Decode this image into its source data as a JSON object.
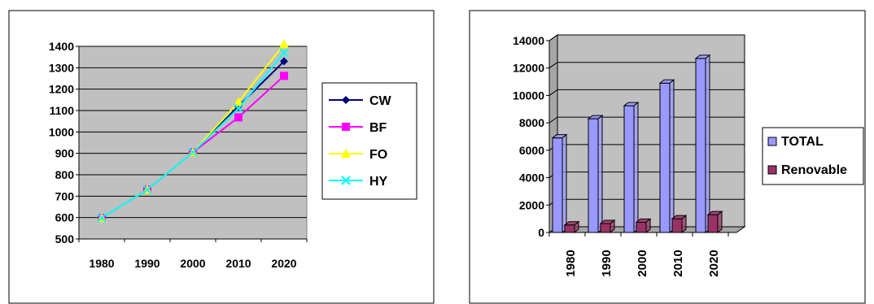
{
  "chart_data": [
    {
      "type": "line",
      "x": [
        "1980",
        "1990",
        "2000",
        "2010",
        "2020"
      ],
      "ylim": [
        500,
        1400
      ],
      "yticks": [
        500,
        600,
        700,
        800,
        900,
        1000,
        1100,
        1200,
        1300,
        1400
      ],
      "grid": true,
      "legend_position": "right",
      "series": [
        {
          "name": "CW",
          "values": [
            598,
            730,
            905,
            1120,
            1330
          ],
          "color": "#000080",
          "marker": "diamond"
        },
        {
          "name": "BF",
          "values": [
            598,
            730,
            905,
            1068,
            1262
          ],
          "color": "#FF00FF",
          "marker": "square"
        },
        {
          "name": "FO",
          "values": [
            598,
            730,
            905,
            1140,
            1410
          ],
          "color": "#FFFF00",
          "marker": "triangle"
        },
        {
          "name": "HY",
          "values": [
            598,
            730,
            905,
            1110,
            1370
          ],
          "color": "#00FFFF",
          "marker": "x"
        }
      ]
    },
    {
      "type": "bar",
      "categories": [
        "1980",
        "1990",
        "2000",
        "2010",
        "2020"
      ],
      "ylim": [
        0,
        14000
      ],
      "yticks": [
        0,
        2000,
        4000,
        6000,
        8000,
        10000,
        12000,
        14000
      ],
      "grid": true,
      "legend_position": "right",
      "series": [
        {
          "name": "TOTAL",
          "values": [
            6900,
            8300,
            9250,
            10900,
            12700
          ],
          "color": "#9999FF"
        },
        {
          "name": "Renovable",
          "values": [
            550,
            650,
            750,
            1000,
            1300
          ],
          "color": "#993366"
        }
      ]
    }
  ]
}
